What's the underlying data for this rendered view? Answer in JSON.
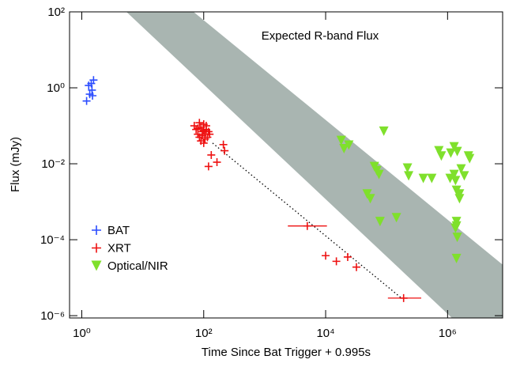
{
  "chart_data": {
    "type": "scatter",
    "annotation": "Expected R-band Flux",
    "xlabel": "Time Since Bat Trigger + 0.995s",
    "ylabel": "Flux (mJy)",
    "xscale": "log",
    "yscale": "log",
    "xlim": [
      0.63,
      8000000
    ],
    "ylim": [
      8.7e-07,
      100
    ],
    "xticks": [
      {
        "value": 1,
        "label": "10⁰"
      },
      {
        "value": 100,
        "label": "10²"
      },
      {
        "value": 10000,
        "label": "10⁴"
      },
      {
        "value": 1000000,
        "label": "10⁶"
      }
    ],
    "yticks": [
      {
        "value": 1e-06,
        "label": "10⁻⁶"
      },
      {
        "value": 0.0001,
        "label": "10⁻⁴"
      },
      {
        "value": 0.01,
        "label": "10⁻²"
      },
      {
        "value": 1,
        "label": "10⁰"
      },
      {
        "value": 100,
        "label": "10²"
      }
    ],
    "legend": "lower left",
    "band": {
      "color": "#a9b5b1",
      "x": [
        5.4,
        68,
        8000000,
        8000000,
        1180000
      ],
      "y": [
        100,
        100,
        2.2e-05,
        8.7e-07,
        8.7e-07
      ]
    },
    "trend": {
      "color": "#000000",
      "x": [
        140,
        180000
      ],
      "y": [
        0.035,
        2.8e-06
      ]
    },
    "series": [
      {
        "name": "BAT",
        "color": "#2b4cff",
        "marker": "+",
        "x": [
          1.2,
          1.3,
          1.43,
          1.56,
          1.47,
          1.35,
          1.5
        ],
        "values": [
          0.45,
          1.15,
          1.3,
          1.6,
          0.87,
          0.68,
          0.62
        ]
      },
      {
        "name": "XRT",
        "color": "#ee1111",
        "marker": "+",
        "x": [
          70,
          75,
          80,
          85,
          90,
          95,
          100,
          105,
          110,
          115,
          120,
          90,
          100,
          85,
          110,
          95,
          105,
          80,
          125,
          100,
          133,
          165,
          220,
          210,
          120,
          5000,
          10000,
          15000,
          23000,
          32000,
          190000
        ],
        "values": [
          0.1,
          0.08,
          0.06,
          0.05,
          0.09,
          0.07,
          0.11,
          0.06,
          0.08,
          0.05,
          0.07,
          0.04,
          0.035,
          0.12,
          0.1,
          0.055,
          0.045,
          0.085,
          0.06,
          0.075,
          0.017,
          0.011,
          0.022,
          0.032,
          0.0085,
          0.00023,
          3.8e-05,
          2.7e-05,
          3.5e-05,
          1.9e-05,
          2.9e-06
        ],
        "x_lo": [
          null,
          null,
          null,
          null,
          null,
          null,
          null,
          null,
          null,
          null,
          null,
          null,
          null,
          null,
          null,
          null,
          null,
          null,
          null,
          null,
          null,
          null,
          null,
          null,
          null,
          2400,
          null,
          null,
          null,
          null,
          105000
        ],
        "x_hi": [
          null,
          null,
          null,
          null,
          null,
          null,
          null,
          null,
          null,
          null,
          null,
          null,
          null,
          null,
          null,
          null,
          null,
          null,
          null,
          null,
          null,
          null,
          null,
          null,
          null,
          10500,
          null,
          null,
          null,
          null,
          370000
        ]
      },
      {
        "name": "Optical/NIR",
        "color": "#7fe02c",
        "marker": "v",
        "x": [
          18000,
          20000,
          24000,
          90000,
          63000,
          69000,
          75000,
          48000,
          54000,
          78000,
          145000,
          220000,
          230000,
          400000,
          550000,
          720000,
          790000,
          1130000,
          1440000,
          2200000,
          1280000,
          1100000,
          1350000,
          1670000,
          1880000,
          2300000,
          1570000,
          1570000,
          1400000,
          1400000,
          1400000,
          1350000,
          1440000,
          1400000,
          1280000
        ],
        "values": [
          0.041,
          0.025,
          0.031,
          0.072,
          0.0084,
          0.0066,
          0.0052,
          0.0016,
          0.0012,
          0.0003,
          0.00038,
          0.0077,
          0.0048,
          0.0041,
          0.0041,
          0.022,
          0.016,
          0.019,
          0.021,
          0.016,
          0.028,
          0.0041,
          0.0036,
          0.0073,
          0.0048,
          0.0136,
          0.0016,
          0.0012,
          0.002,
          0.0003,
          0.00023,
          0.0002,
          0.000115,
          3.2e-05,
          0.0052
        ]
      }
    ]
  }
}
